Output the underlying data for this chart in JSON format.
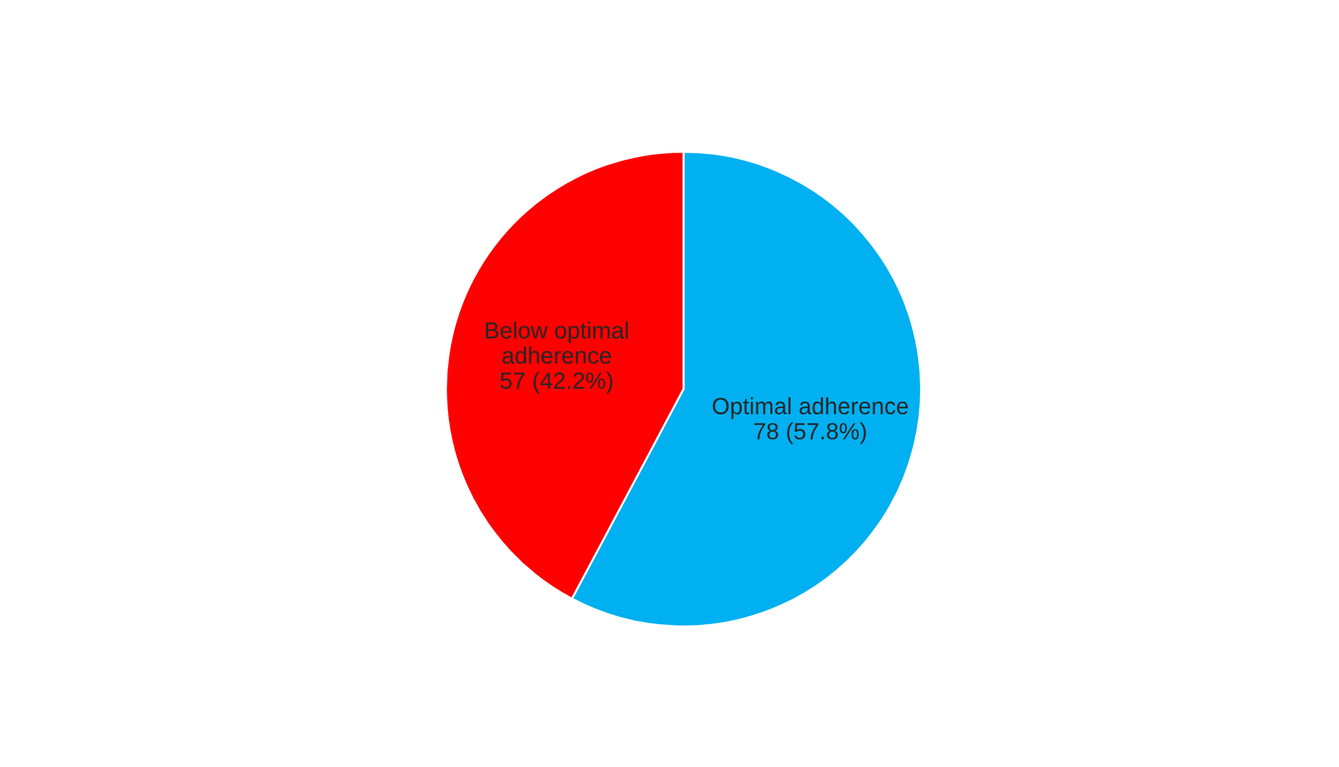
{
  "chart_data": {
    "type": "pie",
    "categories": [
      "Optimal adherence",
      "Below optimal\nadherence"
    ],
    "values": [
      78,
      57
    ],
    "value_labels": [
      "78 (57.8%)",
      "57 (42.2%)"
    ],
    "colors": [
      "#00b0f0",
      "#ff0000"
    ],
    "legend": false
  }
}
